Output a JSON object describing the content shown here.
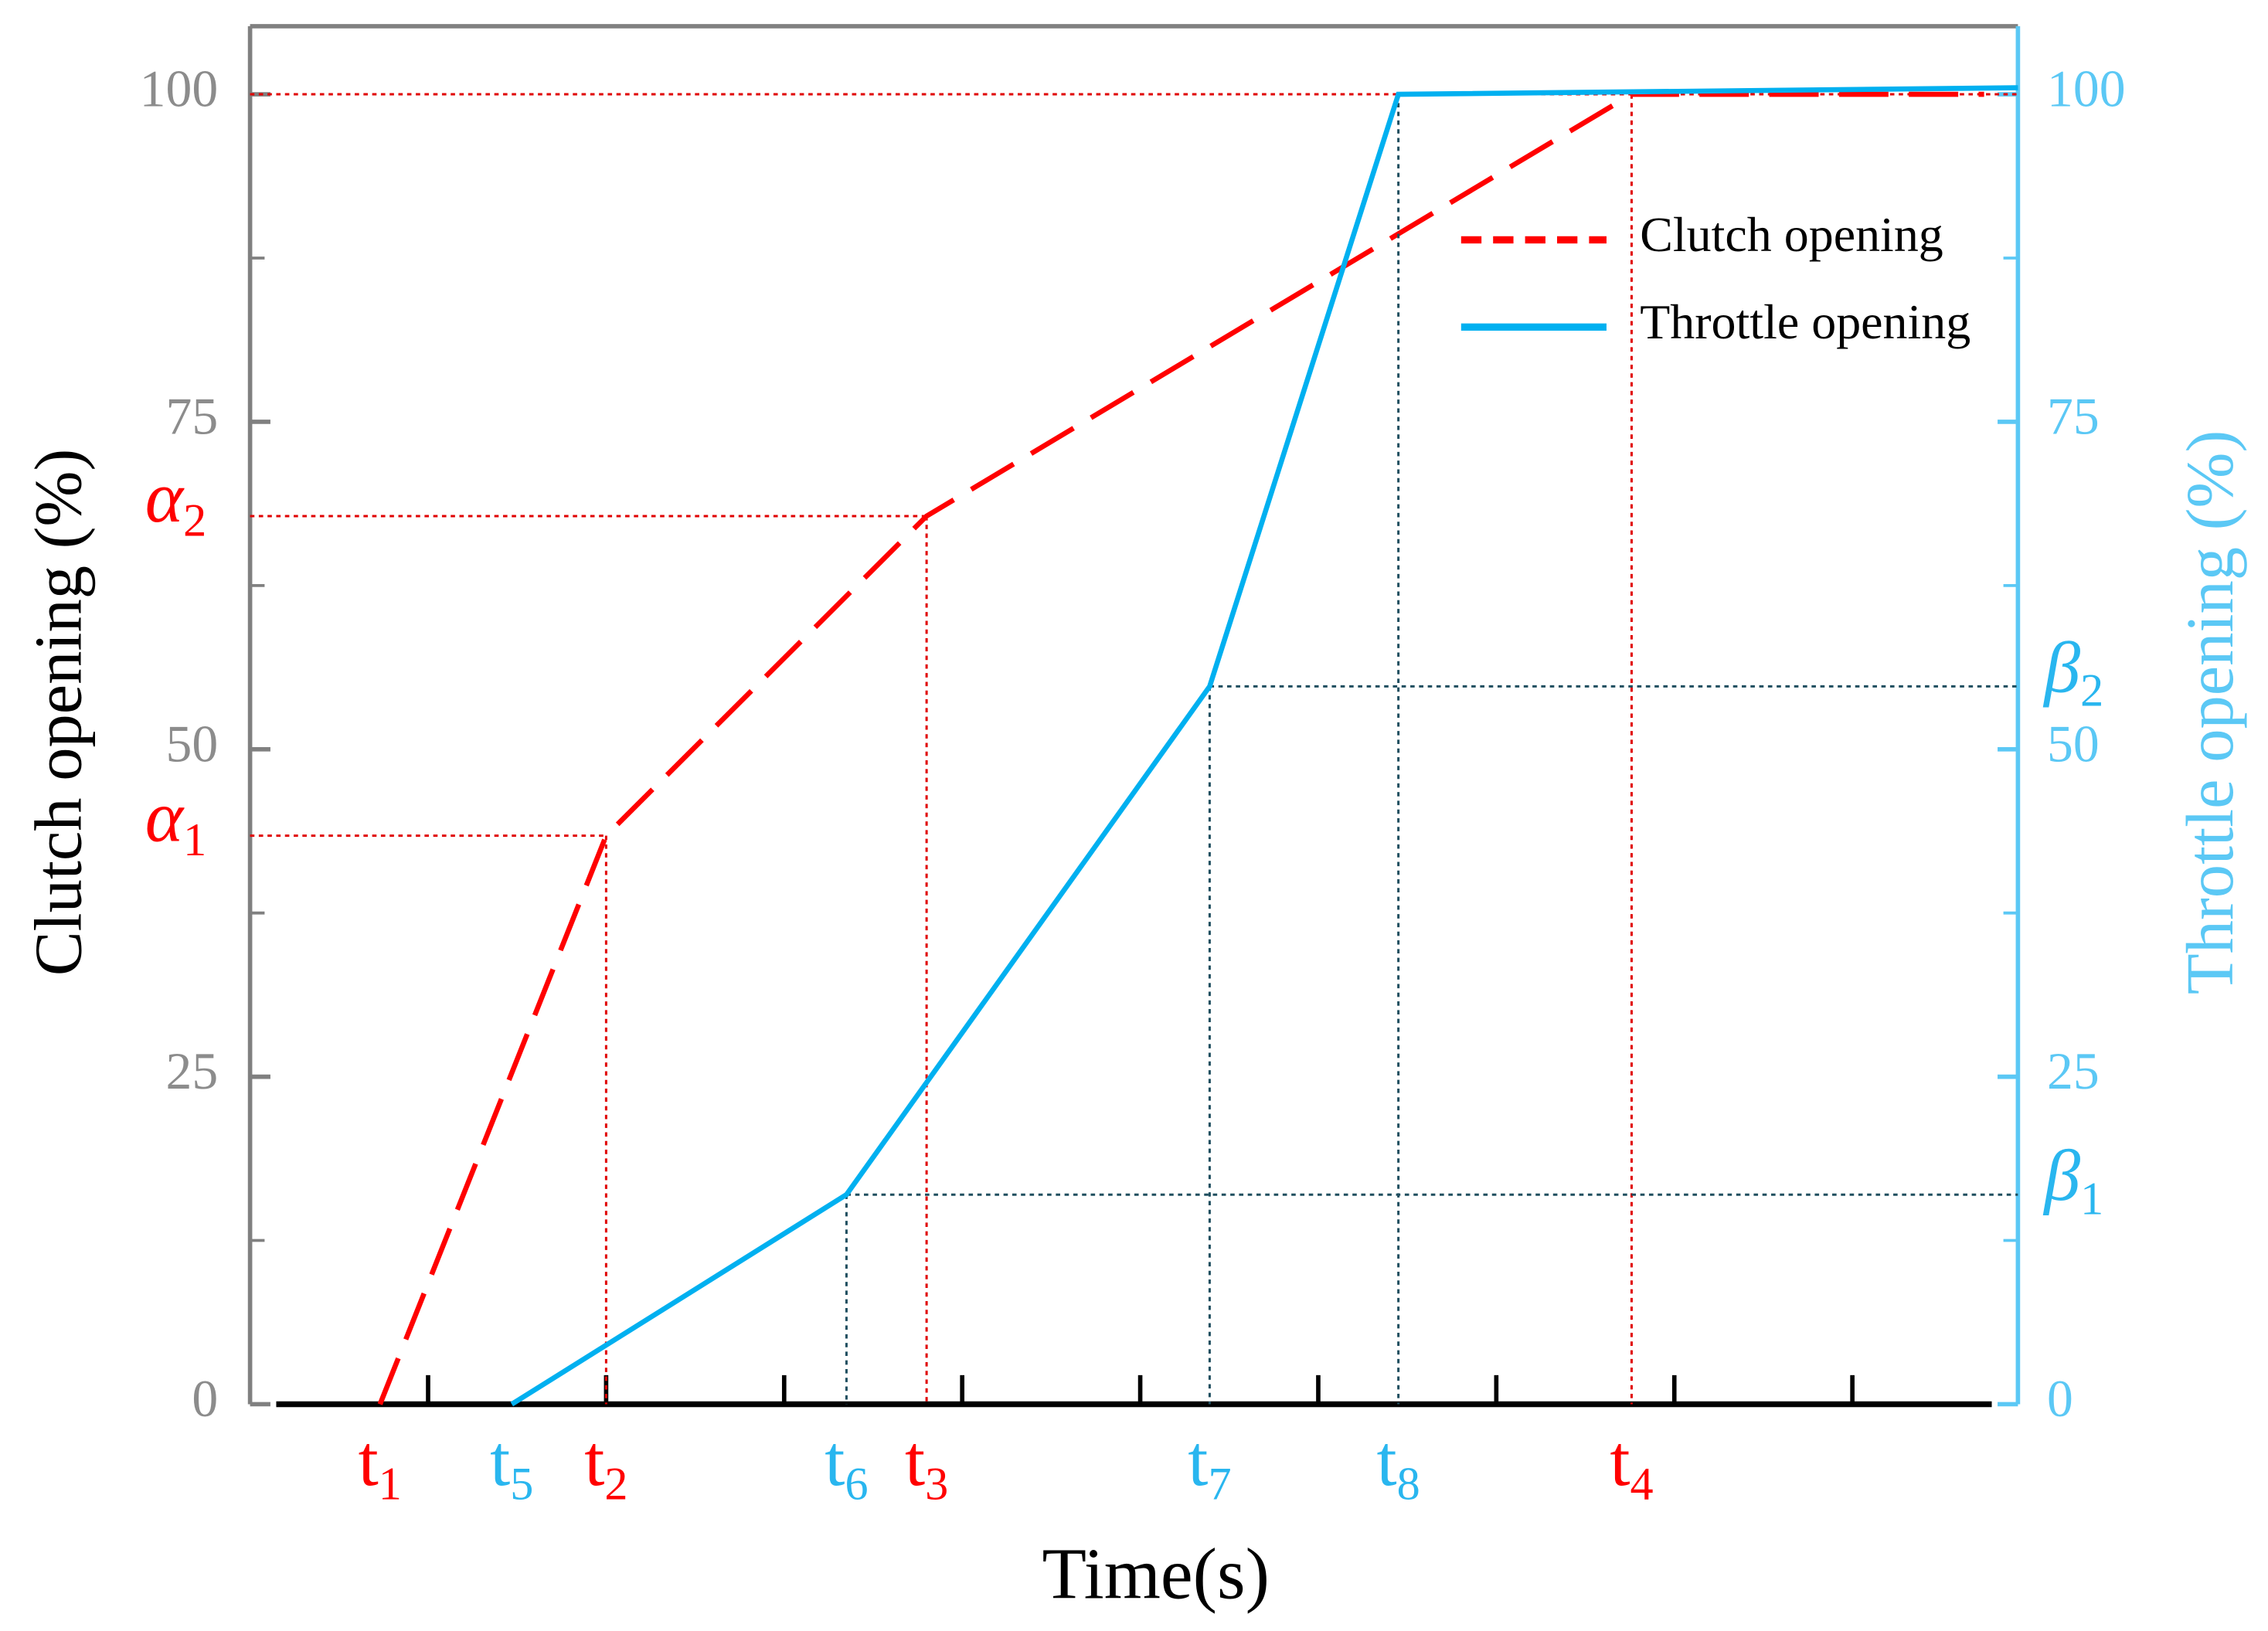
{
  "chart_data": {
    "type": "line",
    "xlabel": "Time(s)",
    "ylabel": "Clutch opening (%)",
    "y2label": "Throttle opening (%)",
    "xlim": [
      0,
      9.93
    ],
    "xticks": [
      1,
      2,
      3,
      4,
      5,
      6,
      7,
      8,
      9
    ],
    "ylim": [
      0,
      105.2
    ],
    "yticks": [
      0,
      25,
      50,
      75,
      100
    ],
    "yminor": [
      12.5,
      37.5,
      62.5,
      87.5
    ],
    "y2lim": [
      0,
      105.2
    ],
    "y2ticks": [
      0,
      25,
      50,
      75,
      100
    ],
    "legend": "upper right",
    "series": [
      {
        "name": "Clutch opening",
        "color": "#ff0000",
        "style": "dashed",
        "x": [
          0.73,
          2.0,
          3.8,
          7.76,
          9.74
        ],
        "values": [
          0,
          43.4,
          67.8,
          100,
          100
        ],
        "x_labels": [
          "t1",
          "t2",
          "t3",
          "t4",
          null
        ],
        "y_labels": [
          null,
          "α1",
          "α2",
          null,
          null
        ]
      },
      {
        "name": "Throttle opening",
        "color": "#00b0f0",
        "style": "solid",
        "axis": "y2",
        "x": [
          1.47,
          3.35,
          5.39,
          6.45,
          9.93
        ],
        "values": [
          0,
          16,
          54.8,
          100,
          100.5
        ],
        "x_labels": [
          "t5",
          "t6",
          "t7",
          "t8",
          null
        ],
        "y_labels": [
          null,
          "β1",
          "β2",
          null,
          null
        ]
      }
    ]
  }
}
